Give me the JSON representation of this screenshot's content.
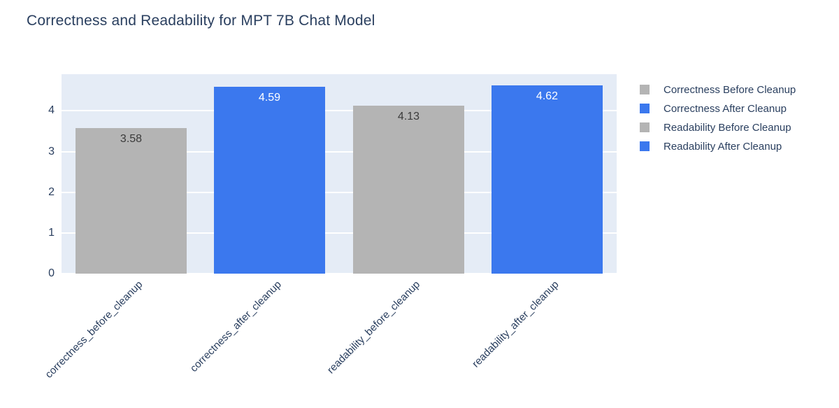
{
  "chart_data": {
    "type": "bar",
    "title": "Correctness and Readability for MPT 7B Chat Model",
    "categories": [
      "correctness_before_cleanup",
      "correctness_after_cleanup",
      "readability_before_cleanup",
      "readability_after_cleanup"
    ],
    "series": [
      {
        "name": "Correctness Before Cleanup",
        "category": "correctness_before_cleanup",
        "value": 3.58,
        "value_label": "3.58",
        "color": "#b4b4b4",
        "label_color": "#3b3b3b"
      },
      {
        "name": "Correctness After Cleanup",
        "category": "correctness_after_cleanup",
        "value": 4.59,
        "value_label": "4.59",
        "color": "#3b78ee",
        "label_color": "#ffffff"
      },
      {
        "name": "Readability Before Cleanup",
        "category": "readability_before_cleanup",
        "value": 4.13,
        "value_label": "4.13",
        "color": "#b4b4b4",
        "label_color": "#3b3b3b"
      },
      {
        "name": "Readability After Cleanup",
        "category": "readability_after_cleanup",
        "value": 4.62,
        "value_label": "4.62",
        "color": "#3b78ee",
        "label_color": "#ffffff"
      }
    ],
    "yticks": [
      "0",
      "1",
      "2",
      "3",
      "4"
    ],
    "ylim": [
      0,
      4.9
    ],
    "grid": true,
    "legend_position": "right",
    "xlabel": "",
    "ylabel": ""
  },
  "colors": {
    "plot_background": "#e5ecf6",
    "gridline": "#ffffff",
    "text": "#2a3f5f",
    "title": "#2a3f5f"
  }
}
